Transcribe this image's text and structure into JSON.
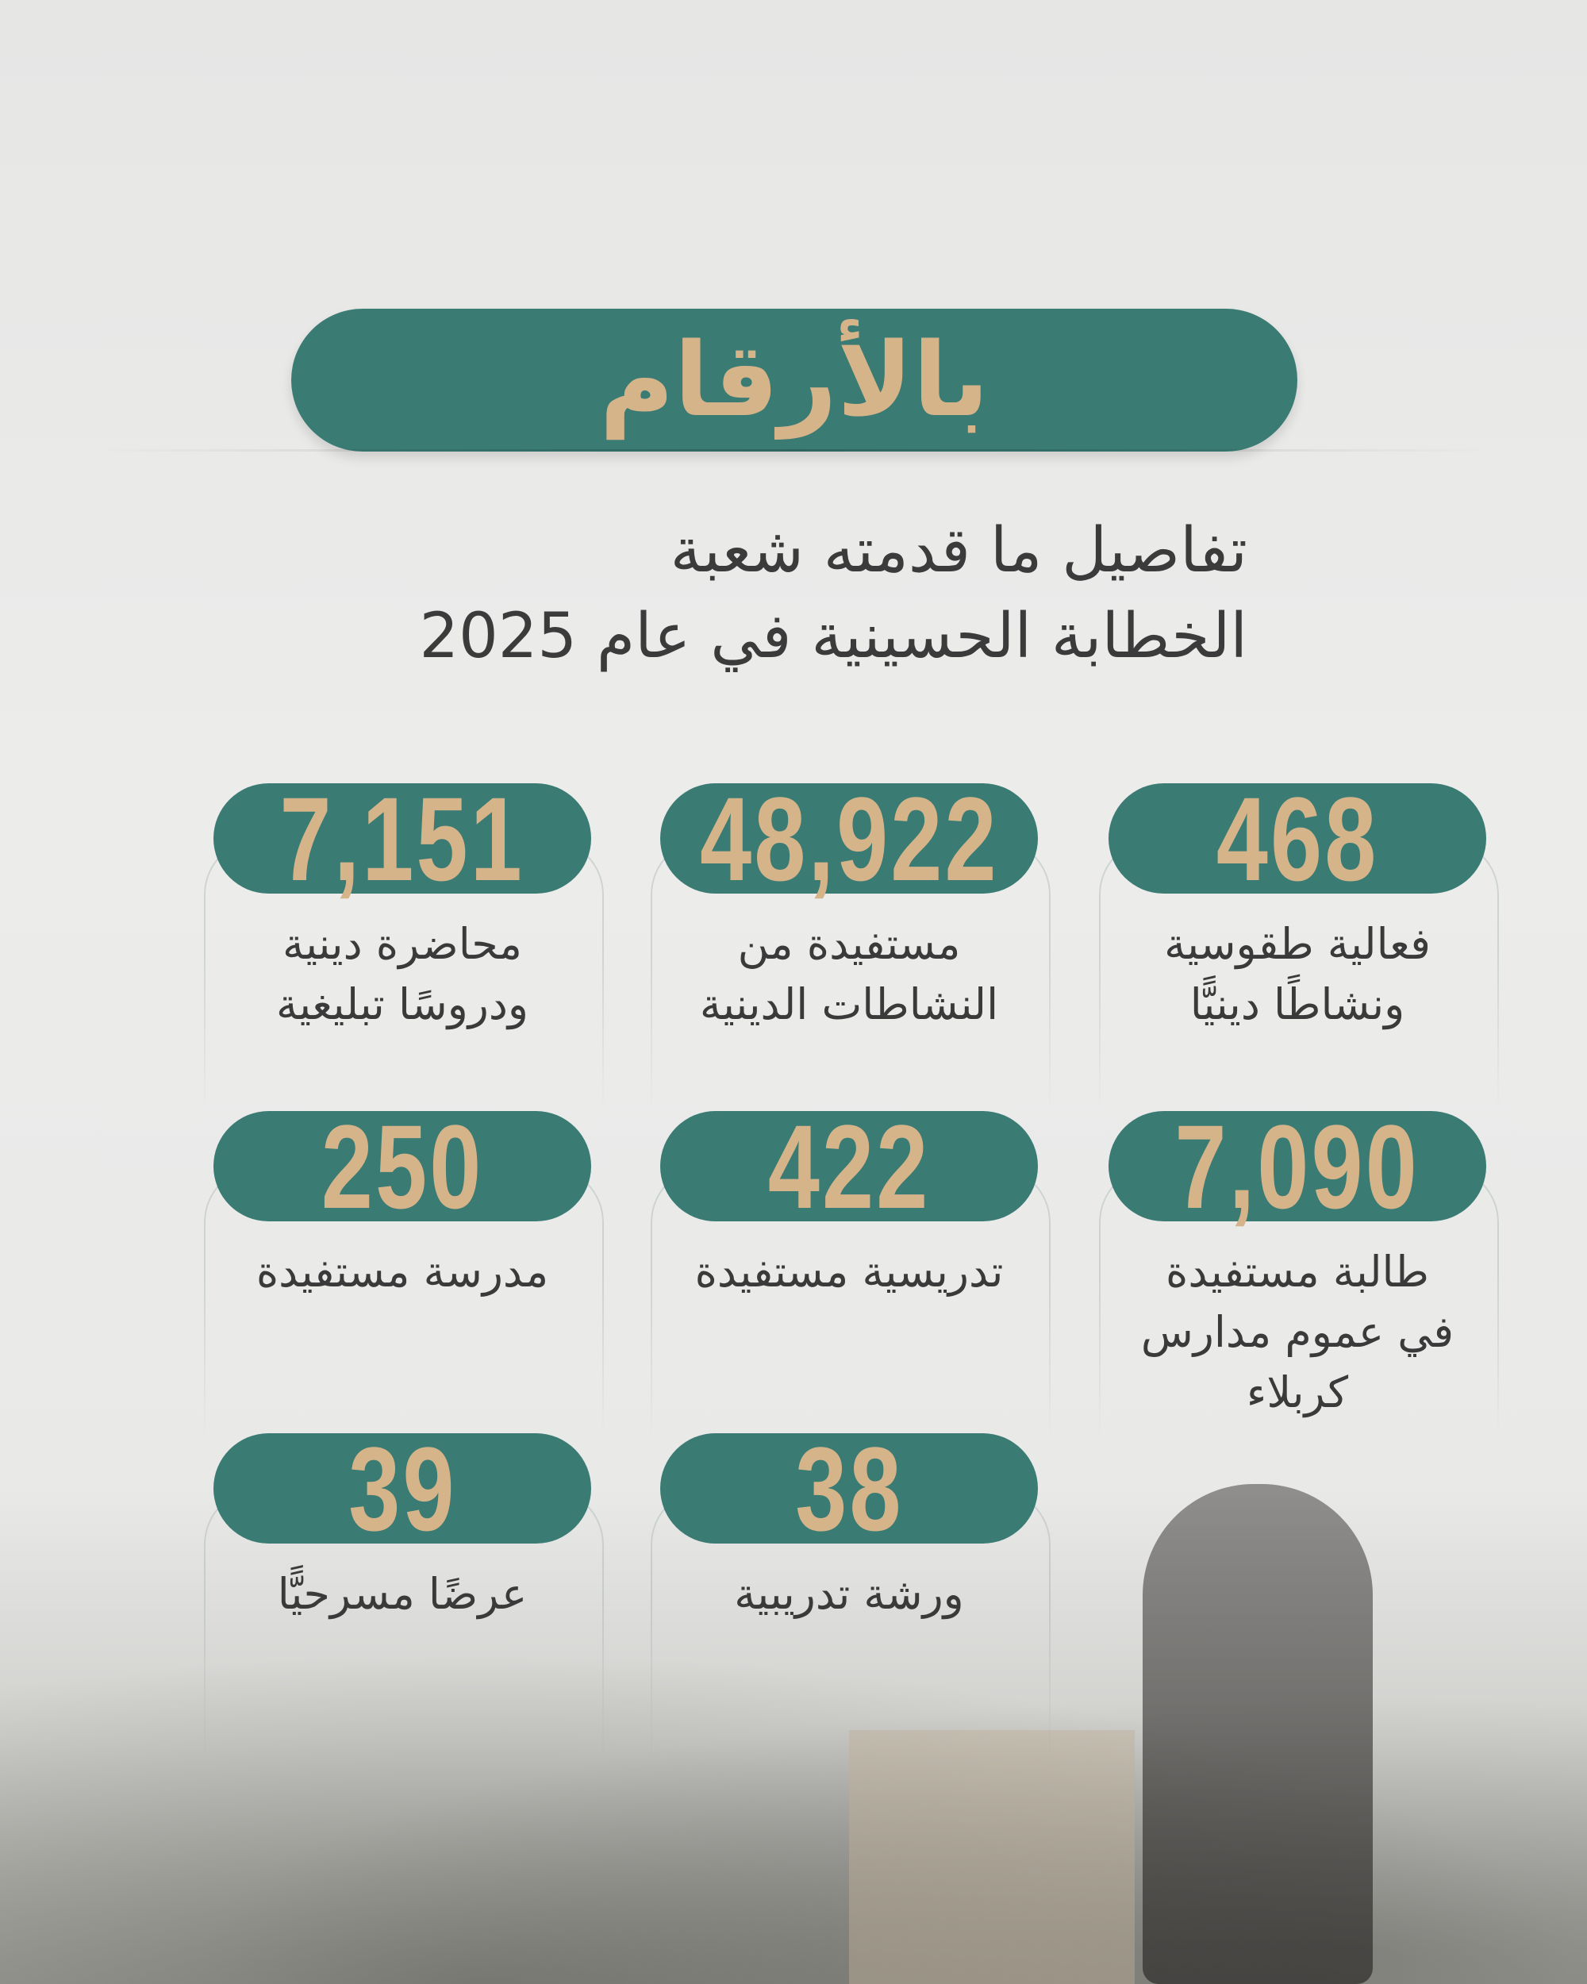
{
  "header": {
    "title": "بالأرقام",
    "subtitle_lines": [
      "تفاصيل ما قدمته شعبة",
      "الخطابة الحسينية في عام 2025"
    ]
  },
  "colors": {
    "accent": "#3a7b74",
    "number": "#d6b48a",
    "text": "#3a3a3a",
    "background": "#ebebea"
  },
  "stats": [
    {
      "value": "468",
      "label": [
        "فعالية طقوسية",
        "ونشاطًا دينيًّا"
      ]
    },
    {
      "value": "48,922",
      "label": [
        "مستفيدة من",
        "النشاطات الدينية"
      ]
    },
    {
      "value": "7,151",
      "label": [
        "محاضرة دينية",
        "ودروسًا تبليغية"
      ]
    },
    {
      "value": "7,090",
      "label": [
        "طالبة مستفيدة",
        "في عموم مدارس",
        "كربلاء"
      ]
    },
    {
      "value": "422",
      "label": [
        "تدريسية مستفيدة"
      ]
    },
    {
      "value": "250",
      "label": [
        "مدرسة مستفيدة"
      ]
    },
    {
      "value": "38",
      "label": [
        "ورشة تدريبية"
      ]
    },
    {
      "value": "39",
      "label": [
        "عرضًا مسرحيًّا"
      ]
    }
  ]
}
